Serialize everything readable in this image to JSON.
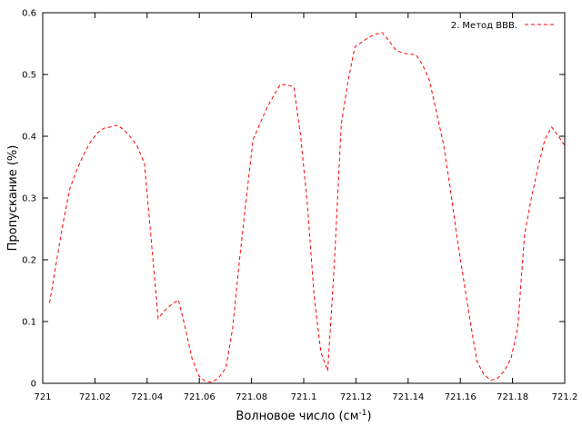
{
  "chart_data": {
    "type": "line",
    "xlabel": "Волновое число (см",
    "xlabel_sup": "-1",
    "xlabel_end": ")",
    "ylabel": "Пропускание (%)",
    "xlim": [
      721,
      721.2
    ],
    "ylim": [
      0,
      0.6
    ],
    "xticks": [
      721,
      721.02,
      721.04,
      721.06,
      721.08,
      721.1,
      721.12,
      721.14,
      721.16,
      721.18,
      721.2
    ],
    "xtick_labels": [
      "721",
      "721.02",
      "721.04",
      "721.06",
      "721.08",
      "721.1",
      "721.12",
      "721.14",
      "721.16",
      "721.18",
      "721.2"
    ],
    "yticks": [
      0,
      0.1,
      0.2,
      0.3,
      0.4,
      0.5,
      0.6
    ],
    "ytick_labels": [
      "0",
      "0.1",
      "0.2",
      "0.3",
      "0.4",
      "0.5",
      "0.6"
    ],
    "legend_position": "top-right",
    "grid": false,
    "series": [
      {
        "name": "2. Метод ВВВ.",
        "color": "#ff0000",
        "style": "dashed",
        "x": [
          721.0026,
          721.0052,
          721.0078,
          721.0104,
          721.013,
          721.0156,
          721.0182,
          721.0208,
          721.0234,
          721.026,
          721.0286,
          721.0312,
          721.0338,
          721.0364,
          721.039,
          721.0416,
          721.0442,
          721.0468,
          721.0494,
          721.052,
          721.0546,
          721.0572,
          721.0598,
          721.0624,
          721.065,
          721.0676,
          721.0702,
          721.0728,
          721.0754,
          721.078,
          721.0806,
          721.0832,
          721.0858,
          721.0884,
          721.091,
          721.0936,
          721.0962,
          721.0988,
          721.1014,
          721.104,
          721.1066,
          721.1092,
          721.1118,
          721.1144,
          721.117,
          721.1196,
          721.1222,
          721.1248,
          721.1274,
          721.13,
          721.1326,
          721.1352,
          721.1378,
          721.1404,
          721.143,
          721.1456,
          721.1482,
          721.1508,
          721.1534,
          721.156,
          721.1586,
          721.1612,
          721.1638,
          721.1664,
          721.169,
          721.1716,
          721.1742,
          721.1768,
          721.1794,
          721.182,
          721.1846,
          721.1872,
          721.1898,
          721.1924,
          721.195,
          721.1976,
          721.2
        ],
        "y": [
          0.13,
          0.195,
          0.26,
          0.315,
          0.345,
          0.37,
          0.39,
          0.405,
          0.413,
          0.415,
          0.418,
          0.41,
          0.398,
          0.382,
          0.355,
          0.23,
          0.105,
          0.118,
          0.128,
          0.135,
          0.09,
          0.04,
          0.012,
          0.003,
          0.002,
          0.01,
          0.025,
          0.09,
          0.2,
          0.3,
          0.395,
          0.42,
          0.445,
          0.465,
          0.484,
          0.483,
          0.48,
          0.4,
          0.29,
          0.14,
          0.05,
          0.02,
          0.2,
          0.42,
          0.49,
          0.545,
          0.552,
          0.56,
          0.565,
          0.568,
          0.555,
          0.54,
          0.535,
          0.533,
          0.532,
          0.515,
          0.49,
          0.44,
          0.39,
          0.32,
          0.24,
          0.17,
          0.1,
          0.035,
          0.015,
          0.005,
          0.008,
          0.02,
          0.04,
          0.09,
          0.24,
          0.3,
          0.35,
          0.395,
          0.415,
          0.4,
          0.385
        ]
      }
    ]
  }
}
